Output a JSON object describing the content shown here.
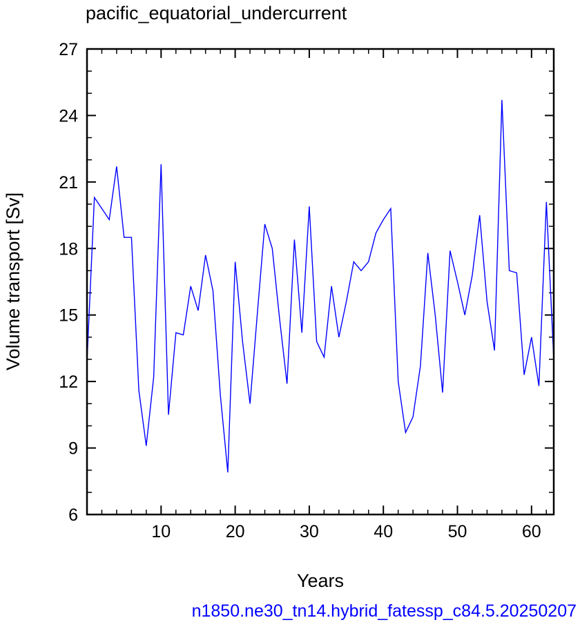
{
  "chart_data": {
    "type": "line",
    "title": "pacific_equatorial_undercurrent",
    "xlabel": "Years",
    "ylabel": "Volume transport [Sv]",
    "xlim": [
      0,
      63
    ],
    "ylim": [
      6,
      27
    ],
    "xticks": [
      10,
      20,
      30,
      40,
      50,
      60
    ],
    "yticks": [
      6,
      9,
      12,
      15,
      18,
      21,
      24,
      27
    ],
    "grid": false,
    "series": [
      {
        "color": "#0000ff",
        "x": [
          0,
          1,
          2,
          3,
          4,
          5,
          6,
          7,
          8,
          9,
          10,
          11,
          12,
          13,
          14,
          15,
          16,
          17,
          18,
          19,
          20,
          21,
          22,
          23,
          24,
          25,
          26,
          27,
          28,
          29,
          30,
          31,
          32,
          33,
          34,
          35,
          36,
          37,
          38,
          39,
          40,
          41,
          42,
          43,
          44,
          45,
          46,
          47,
          48,
          49,
          50,
          51,
          52,
          53,
          54,
          55,
          56,
          57,
          58,
          59,
          60,
          61,
          62,
          63
        ],
        "y": [
          12.9,
          20.3,
          19.8,
          19.3,
          21.7,
          18.5,
          18.5,
          11.6,
          9.1,
          12.2,
          21.8,
          10.5,
          14.2,
          14.1,
          16.3,
          15.2,
          17.7,
          16.1,
          11.4,
          7.9,
          17.4,
          13.8,
          11.0,
          15.1,
          19.1,
          18.0,
          14.8,
          11.9,
          18.4,
          14.2,
          19.9,
          13.8,
          13.1,
          16.3,
          14.0,
          15.6,
          17.4,
          17.0,
          17.4,
          18.7,
          19.3,
          19.8,
          12.0,
          9.7,
          10.4,
          12.7,
          17.8,
          15.0,
          11.5,
          17.9,
          16.5,
          15.0,
          16.8,
          19.5,
          15.6,
          13.4,
          24.7,
          17.0,
          16.9,
          12.3,
          14.0,
          11.8,
          20.1,
          13.0
        ]
      }
    ]
  },
  "caption": "n1850.ne30_tn14.hybrid_fatessp_c84.5.20250207",
  "caption_color": "#0000ff"
}
